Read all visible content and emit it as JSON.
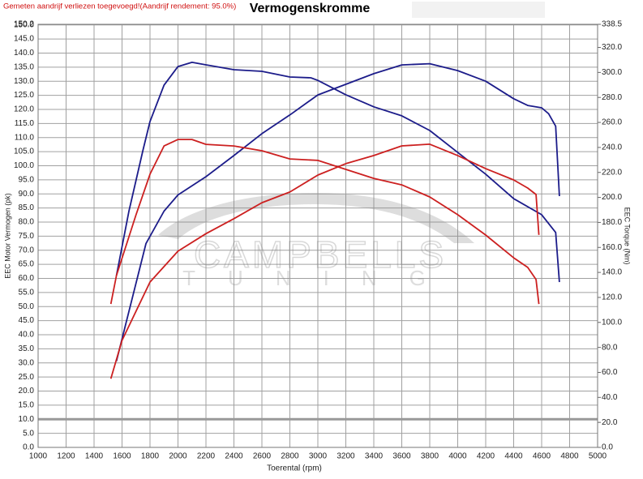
{
  "chart_data": {
    "type": "line",
    "title": "Vermogenskromme",
    "note": "Gemeten aandrijf verliezen toegevoegd!(Aandrijf rendement: 95.0%)",
    "watermark": [
      "CAMPBELLS",
      "TUNING"
    ],
    "x_label": "Toerental (rpm)",
    "y_label": "EEC Motor Vermogen (pk)",
    "y2_label": "EEC Torque (Nm)",
    "xlim": [
      1000,
      5000
    ],
    "xticks": [
      1000,
      1200,
      1400,
      1600,
      1800,
      2000,
      2200,
      2400,
      2600,
      2800,
      3000,
      3200,
      3400,
      3600,
      3800,
      4000,
      4200,
      4400,
      4600,
      4800,
      5000
    ],
    "ylim": [
      0,
      150.2
    ],
    "yticks": [
      {
        "value": 0,
        "label": "0.0"
      },
      {
        "value": 5,
        "label": "5.0"
      },
      {
        "value": 10,
        "label": "10.0"
      },
      {
        "value": 15,
        "label": "15.0"
      },
      {
        "value": 20,
        "label": "20.0"
      },
      {
        "value": 25,
        "label": "25.0"
      },
      {
        "value": 30,
        "label": "30.0"
      },
      {
        "value": 35,
        "label": "35.0"
      },
      {
        "value": 40,
        "label": "40.0"
      },
      {
        "value": 45,
        "label": "45.0"
      },
      {
        "value": 50,
        "label": "50.0"
      },
      {
        "value": 55,
        "label": "55.0"
      },
      {
        "value": 60,
        "label": "60.0"
      },
      {
        "value": 65,
        "label": "65.0"
      },
      {
        "value": 70,
        "label": "70.0"
      },
      {
        "value": 75,
        "label": "75.0"
      },
      {
        "value": 80,
        "label": "80.0"
      },
      {
        "value": 85,
        "label": "85.0"
      },
      {
        "value": 90,
        "label": "90.0"
      },
      {
        "value": 95,
        "label": "95.0"
      },
      {
        "value": 100,
        "label": "100.0"
      },
      {
        "value": 105,
        "label": "105.0"
      },
      {
        "value": 110,
        "label": "110.0"
      },
      {
        "value": 115,
        "label": "115.0"
      },
      {
        "value": 120,
        "label": "120.0"
      },
      {
        "value": 125,
        "label": "125.0"
      },
      {
        "value": 130,
        "label": "130.0"
      },
      {
        "value": 135,
        "label": "135.0"
      },
      {
        "value": 140,
        "label": "140.0"
      },
      {
        "value": 145,
        "label": "145.0"
      },
      {
        "value": 150,
        "label": "150.0"
      },
      150.2
    ],
    "y2lim": [
      0,
      338.5
    ],
    "y2ticks": [
      {
        "value": 0,
        "label": "0.0"
      },
      {
        "value": 20,
        "label": "20.0"
      },
      {
        "value": 40,
        "label": "40.0"
      },
      {
        "value": 60,
        "label": "60.0"
      },
      {
        "value": 80,
        "label": "80.0"
      },
      {
        "value": 100,
        "label": "100.0"
      },
      {
        "value": 120,
        "label": "120.0"
      },
      {
        "value": 140,
        "label": "140.0"
      },
      {
        "value": 160,
        "label": "160.0"
      },
      {
        "value": 180,
        "label": "180.0"
      },
      {
        "value": 200,
        "label": "200.0"
      },
      {
        "value": 220,
        "label": "220.0"
      },
      {
        "value": 240,
        "label": "240.0"
      },
      {
        "value": 260,
        "label": "260.0"
      },
      {
        "value": 280,
        "label": "280.0"
      },
      {
        "value": 300,
        "label": "300.0"
      },
      {
        "value": 320,
        "label": "320.0"
      },
      338.5
    ],
    "grid": true,
    "reference_line": 10,
    "series": [
      {
        "color": "#1c1c8a",
        "axis": "y",
        "x": [
          1560,
          1650,
          1750,
          1800,
          1900,
          2000,
          2100,
          2200,
          2400,
          2600,
          2800,
          2950,
          3000,
          3200,
          3400,
          3600,
          3800,
          4000,
          4200,
          4400,
          4600,
          4700,
          4727
        ],
        "values": [
          61,
          84,
          105.6,
          115.7,
          128.6,
          135.2,
          136.7,
          135.8,
          134.1,
          133.5,
          131.5,
          131.2,
          130.3,
          125.2,
          120.9,
          117.7,
          112.5,
          104.7,
          97,
          88.3,
          82.6,
          76.3,
          58.7
        ]
      },
      {
        "color": "#1c1c8a",
        "axis": "y2",
        "x": [
          1560,
          1771,
          1900,
          2000,
          2200,
          2400,
          2600,
          2800,
          3000,
          3200,
          3400,
          3600,
          3800,
          4000,
          4200,
          4400,
          4500,
          4600,
          4650,
          4700,
          4727
        ],
        "values": [
          69,
          163,
          189,
          202,
          216.6,
          233.5,
          251,
          266,
          282,
          290.5,
          299,
          306,
          307,
          301.5,
          293,
          279,
          273.6,
          271.7,
          267,
          257,
          201
        ]
      },
      {
        "color": "#cc2020",
        "axis": "y",
        "x": [
          1520,
          1560,
          1700,
          1800,
          1900,
          2000,
          2100,
          2200,
          2400,
          2600,
          2800,
          3000,
          3200,
          3400,
          3600,
          3800,
          4000,
          4200,
          4400,
          4500,
          4560,
          4580
        ],
        "values": [
          50.9,
          61,
          82.6,
          97,
          107,
          109.3,
          109.3,
          107.6,
          107,
          105.3,
          102.4,
          101.9,
          98.7,
          95.5,
          93.2,
          88.9,
          82.6,
          75.4,
          67.3,
          63.9,
          59.6,
          50.9
        ]
      },
      {
        "color": "#cc2020",
        "axis": "y2",
        "x": [
          1520,
          1600,
          1800,
          2000,
          2200,
          2400,
          2600,
          2800,
          3000,
          3200,
          3400,
          3600,
          3800,
          4000,
          4200,
          4400,
          4500,
          4560,
          4580
        ],
        "values": [
          55,
          85.6,
          132.3,
          157,
          171,
          183,
          195.8,
          204.3,
          217.9,
          227,
          233.5,
          241.2,
          242.6,
          233.5,
          223,
          214,
          207.5,
          202.3,
          170
        ]
      }
    ]
  }
}
